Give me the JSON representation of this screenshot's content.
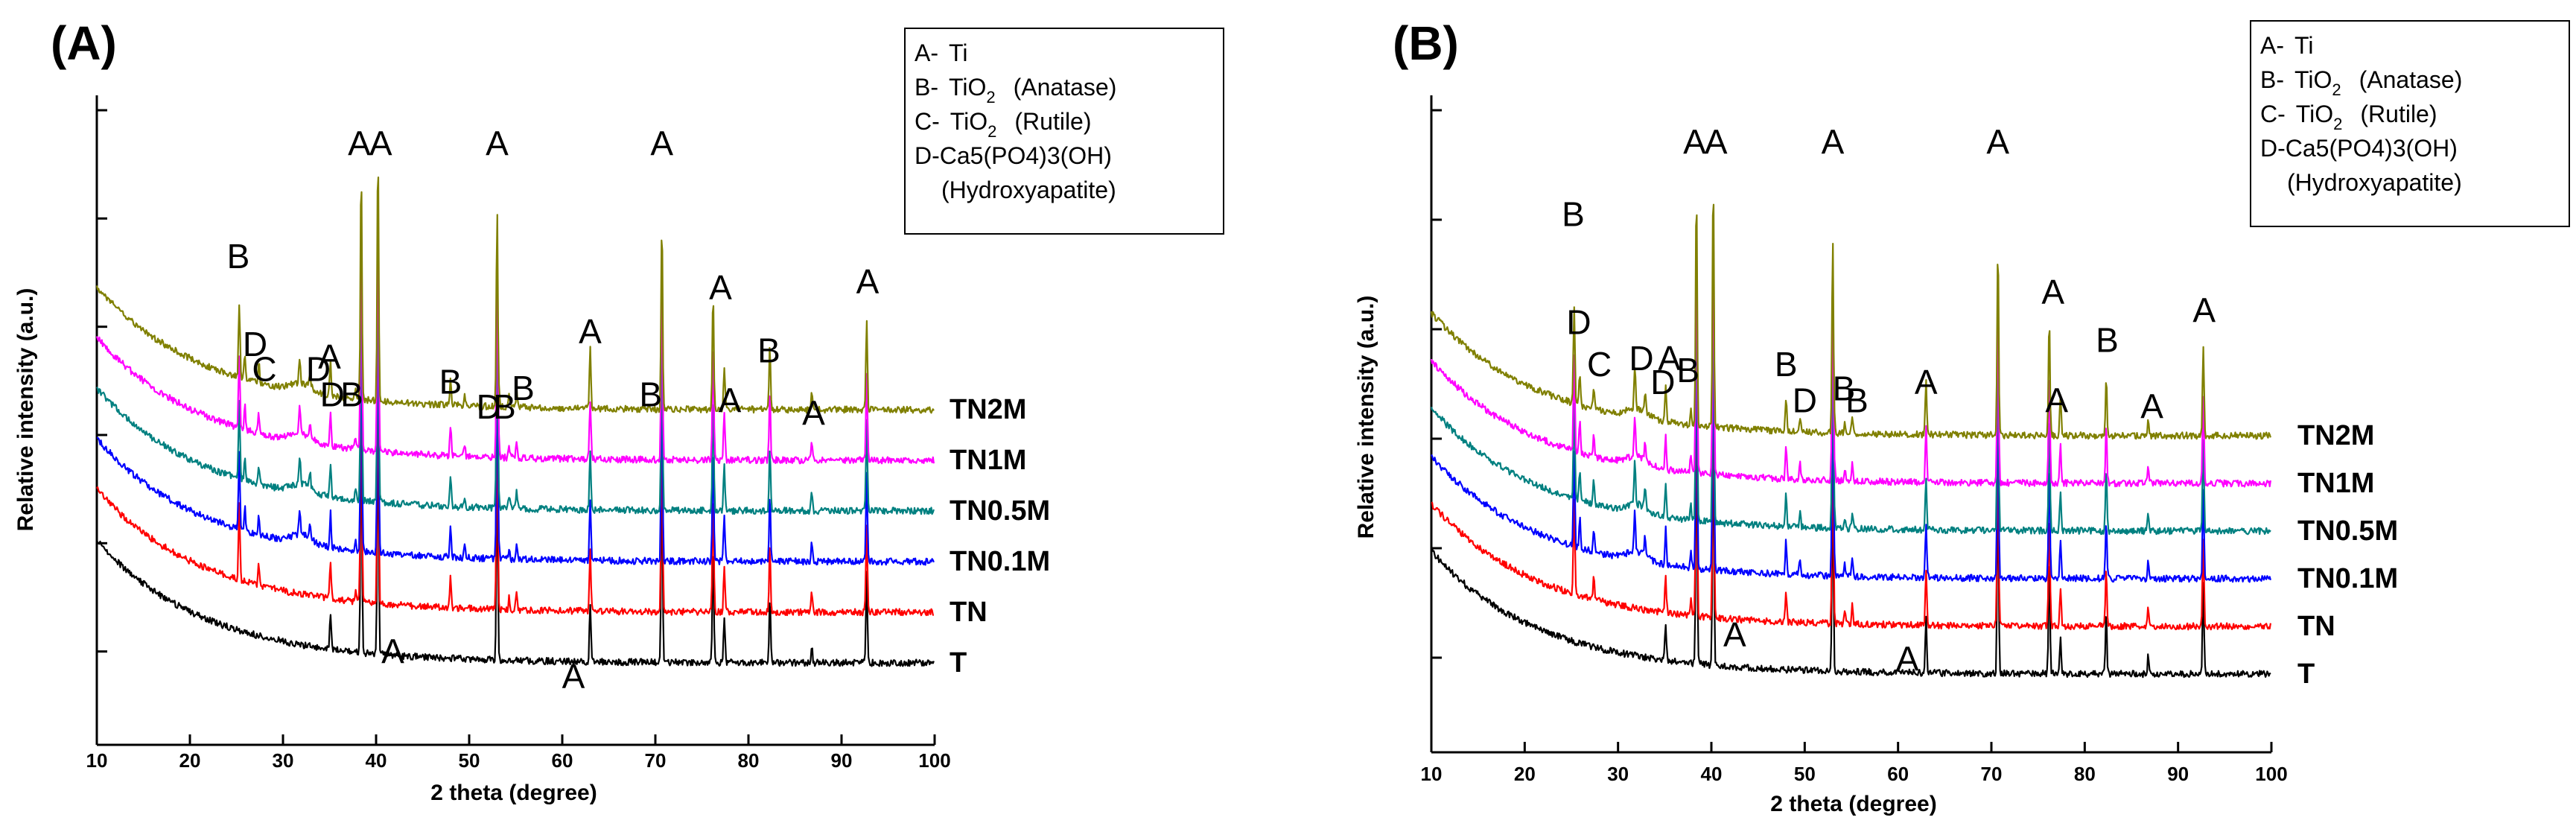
{
  "chart_data": [
    {
      "type": "line",
      "panel_label": "(A)",
      "xlabel": "2 theta (degree)",
      "ylabel": "Relative intensity (a.u.)",
      "xlim": [
        10,
        100
      ],
      "xticks": [
        10,
        20,
        30,
        40,
        50,
        60,
        70,
        80,
        90,
        100
      ],
      "legend": {
        "position": "top-right",
        "entries": [
          {
            "code": "A-",
            "name": "Ti",
            "sub": "",
            "tail": "",
            "line2": ""
          },
          {
            "code": "B-",
            "name": "TiO",
            "sub": "2",
            "tail": "(Anatase)",
            "line2": ""
          },
          {
            "code": "C-",
            "name": "TiO",
            "sub": "2",
            "tail": "(Rutile)",
            "line2": ""
          },
          {
            "code": "D-",
            "name": "Ca5(PO4)3(OH)",
            "sub": "",
            "tail": "",
            "line2": "(Hydroxyapatite)"
          }
        ]
      },
      "series": [
        {
          "name": "T",
          "color": "#000000",
          "offset": 0,
          "has_hap": false,
          "ti_only": true
        },
        {
          "name": "TN",
          "color": "#ff0000",
          "offset": 1,
          "has_hap": false,
          "ti_only": false
        },
        {
          "name": "TN0.1M",
          "color": "#0000ff",
          "offset": 2,
          "has_hap": true,
          "ti_only": false
        },
        {
          "name": "TN0.5M",
          "color": "#008080",
          "offset": 3,
          "has_hap": true,
          "ti_only": false
        },
        {
          "name": "TN1M",
          "color": "#ff00ff",
          "offset": 4,
          "has_hap": true,
          "ti_only": false
        },
        {
          "name": "TN2M",
          "color": "#808000",
          "offset": 5,
          "has_hap": true,
          "ti_only": false
        }
      ],
      "peaks": {
        "ti": [
          [
            35.1,
            1.2
          ],
          [
            38.4,
            8.0
          ],
          [
            40.2,
            8.5
          ],
          [
            53.0,
            6.5
          ],
          [
            63.0,
            2.0
          ],
          [
            70.7,
            6.5
          ],
          [
            76.2,
            4.0
          ],
          [
            77.4,
            1.5
          ],
          [
            82.3,
            2.2
          ],
          [
            86.8,
            0.6
          ],
          [
            92.7,
            3.0
          ]
        ],
        "anatase": [
          [
            25.3,
            2.5
          ],
          [
            48.0,
            1.0
          ],
          [
            55.1,
            0.6
          ],
          [
            37.8,
            0.4
          ]
        ],
        "rutile": [
          [
            27.4,
            0.7
          ],
          [
            54.3,
            0.4
          ]
        ],
        "hap": [
          [
            25.9,
            0.8
          ],
          [
            31.8,
            0.9
          ],
          [
            32.9,
            0.5
          ],
          [
            49.5,
            0.4
          ],
          [
            53.2,
            0.4
          ]
        ]
      },
      "annotations": [
        {
          "text": "A",
          "x": 38.2,
          "y": 94
        },
        {
          "text": "A",
          "x": 40.5,
          "y": 94
        },
        {
          "text": "A",
          "x": 53.0,
          "y": 94
        },
        {
          "text": "A",
          "x": 70.7,
          "y": 94
        },
        {
          "text": "B",
          "x": 25.2,
          "y": 76
        },
        {
          "text": "A",
          "x": 77.0,
          "y": 71
        },
        {
          "text": "A",
          "x": 92.8,
          "y": 72
        },
        {
          "text": "D",
          "x": 27.0,
          "y": 62
        },
        {
          "text": "A",
          "x": 35.0,
          "y": 60
        },
        {
          "text": "C",
          "x": 28.0,
          "y": 58
        },
        {
          "text": "D",
          "x": 33.8,
          "y": 58
        },
        {
          "text": "A",
          "x": 63.0,
          "y": 64
        },
        {
          "text": "B",
          "x": 82.2,
          "y": 61
        },
        {
          "text": "D",
          "x": 35.3,
          "y": 54
        },
        {
          "text": "B",
          "x": 37.4,
          "y": 54
        },
        {
          "text": "B",
          "x": 48.0,
          "y": 56
        },
        {
          "text": "D",
          "x": 52.1,
          "y": 52
        },
        {
          "text": "B",
          "x": 53.8,
          "y": 52
        },
        {
          "text": "B",
          "x": 55.8,
          "y": 55
        },
        {
          "text": "B",
          "x": 69.5,
          "y": 54
        },
        {
          "text": "A",
          "x": 78.0,
          "y": 53
        },
        {
          "text": "A",
          "x": 87.0,
          "y": 51
        },
        {
          "text": "A",
          "x": 41.8,
          "y": 13
        },
        {
          "text": "A",
          "x": 61.2,
          "y": 9
        }
      ]
    },
    {
      "type": "line",
      "panel_label": "(B)",
      "xlabel": "2 theta (degree)",
      "ylabel": "Relative intensity (a.u.)",
      "xlim": [
        10,
        100
      ],
      "xticks": [
        10,
        20,
        30,
        40,
        50,
        60,
        70,
        80,
        90,
        100
      ],
      "legend": {
        "position": "top-right",
        "entries": [
          {
            "code": "A-",
            "name": "Ti",
            "sub": "",
            "tail": "",
            "line2": ""
          },
          {
            "code": "B-",
            "name": "TiO",
            "sub": "2",
            "tail": "(Anatase)",
            "line2": ""
          },
          {
            "code": "C-",
            "name": "TiO",
            "sub": "2",
            "tail": "(Rutile)",
            "line2": ""
          },
          {
            "code": "D-",
            "name": "Ca5(PO4)3(OH)",
            "sub": "",
            "tail": "",
            "line2": "(Hydroxyapatite)"
          }
        ]
      },
      "series": [
        {
          "name": "T",
          "color": "#000000",
          "offset": 0,
          "has_hap": false,
          "ti_only": true
        },
        {
          "name": "TN",
          "color": "#ff0000",
          "offset": 1,
          "has_hap": false,
          "ti_only": false
        },
        {
          "name": "TN0.1M",
          "color": "#0000ff",
          "offset": 2,
          "has_hap": true,
          "ti_only": false
        },
        {
          "name": "TN0.5M",
          "color": "#008080",
          "offset": 3,
          "has_hap": true,
          "ti_only": false
        },
        {
          "name": "TN1M",
          "color": "#ff00ff",
          "offset": 4,
          "has_hap": true,
          "ti_only": false
        },
        {
          "name": "TN2M",
          "color": "#808000",
          "offset": 5,
          "has_hap": true,
          "ti_only": false
        }
      ],
      "peaks": {
        "ti": [
          [
            35.1,
            1.2
          ],
          [
            38.4,
            8.0
          ],
          [
            40.2,
            8.5
          ],
          [
            53.0,
            6.5
          ],
          [
            63.0,
            1.8
          ],
          [
            70.7,
            6.5
          ],
          [
            76.2,
            4.0
          ],
          [
            77.4,
            1.3
          ],
          [
            82.3,
            2.0
          ],
          [
            86.8,
            0.6
          ],
          [
            92.7,
            3.0
          ]
        ],
        "anatase": [
          [
            25.3,
            3.2
          ],
          [
            48.0,
            1.1
          ],
          [
            55.1,
            0.6
          ],
          [
            37.8,
            0.5
          ]
        ],
        "rutile": [
          [
            27.4,
            0.8
          ],
          [
            54.3,
            0.4
          ]
        ],
        "hap": [
          [
            25.9,
            1.0
          ],
          [
            31.8,
            1.4
          ],
          [
            32.9,
            0.7
          ],
          [
            49.5,
            0.5
          ],
          [
            53.2,
            0.4
          ]
        ]
      },
      "annotations": [
        {
          "text": "A",
          "x": 38.2,
          "y": 94
        },
        {
          "text": "A",
          "x": 40.5,
          "y": 94
        },
        {
          "text": "A",
          "x": 53.0,
          "y": 94
        },
        {
          "text": "A",
          "x": 70.7,
          "y": 94
        },
        {
          "text": "B",
          "x": 25.2,
          "y": 82
        },
        {
          "text": "D",
          "x": 25.8,
          "y": 64
        },
        {
          "text": "C",
          "x": 28.0,
          "y": 57
        },
        {
          "text": "D",
          "x": 32.5,
          "y": 58
        },
        {
          "text": "A",
          "x": 35.5,
          "y": 58
        },
        {
          "text": "D",
          "x": 34.8,
          "y": 54
        },
        {
          "text": "B",
          "x": 37.5,
          "y": 56
        },
        {
          "text": "B",
          "x": 48.0,
          "y": 57
        },
        {
          "text": "D",
          "x": 50.0,
          "y": 51
        },
        {
          "text": "B",
          "x": 54.2,
          "y": 53
        },
        {
          "text": "B",
          "x": 55.6,
          "y": 51
        },
        {
          "text": "A",
          "x": 63.0,
          "y": 54
        },
        {
          "text": "A",
          "x": 76.6,
          "y": 69
        },
        {
          "text": "B",
          "x": 82.4,
          "y": 61
        },
        {
          "text": "A",
          "x": 92.8,
          "y": 66
        },
        {
          "text": "A",
          "x": 77.0,
          "y": 51
        },
        {
          "text": "A",
          "x": 87.2,
          "y": 50
        },
        {
          "text": "A",
          "x": 42.5,
          "y": 12
        },
        {
          "text": "A",
          "x": 61.0,
          "y": 8
        }
      ]
    }
  ]
}
